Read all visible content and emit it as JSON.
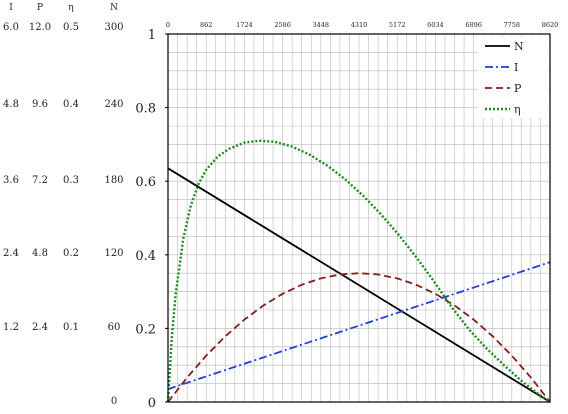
{
  "chart_data": {
    "type": "line",
    "title": "",
    "xlabel": "",
    "ylabel": "",
    "top_axis_ticks": [
      "0",
      "862",
      "1724",
      "2586",
      "3448",
      "4310",
      "5172",
      "6034",
      "6896",
      "7758",
      "8620"
    ],
    "xlim": [
      0,
      8620
    ],
    "ylim": [
      0,
      1
    ],
    "left_axis_ticks": [
      "0",
      "0.2",
      "0.4",
      "0.6",
      "0.8",
      "1"
    ],
    "grid": true,
    "grid_minor_x_per_major": 4,
    "grid_minor_y_per_major": 4,
    "secondary_scales": {
      "headers": [
        "I",
        "P",
        "η",
        "N"
      ],
      "rows": [
        [
          "6.0",
          "12.0",
          "0.5",
          "300"
        ],
        [
          "4.8",
          "9.6",
          "0.4",
          "240"
        ],
        [
          "3.6",
          "7.2",
          "0.3",
          "180"
        ],
        [
          "2.4",
          "4.8",
          "0.2",
          "120"
        ],
        [
          "1.2",
          "2.4",
          "0.1",
          "60"
        ],
        [
          "",
          "",
          "",
          "0"
        ]
      ]
    },
    "legend_position": "top-right",
    "series": [
      {
        "name": "N",
        "color": "#000000",
        "dash": "solid",
        "x": [
          0,
          862,
          1724,
          2586,
          3448,
          4310,
          5172,
          6034,
          6896,
          7758,
          8620
        ],
        "y": [
          0.635,
          0.5715,
          0.508,
          0.4445,
          0.381,
          0.3175,
          0.254,
          0.1905,
          0.127,
          0.0635,
          0.0
        ]
      },
      {
        "name": "I",
        "color": "#1f3fd6",
        "dash": "dashdot",
        "x": [
          0,
          862,
          1724,
          2586,
          3448,
          4310,
          5172,
          6034,
          6896,
          7758,
          8620
        ],
        "y": [
          0.035,
          0.0695,
          0.104,
          0.1385,
          0.173,
          0.2075,
          0.242,
          0.2765,
          0.311,
          0.3455,
          0.38
        ]
      },
      {
        "name": "P",
        "color": "#8b1a1a",
        "dash": "dashed",
        "x": [
          0,
          431,
          862,
          1293,
          1724,
          2155,
          2586,
          3017,
          3448,
          3879,
          4310,
          4741,
          5172,
          5603,
          6034,
          6465,
          6896,
          7327,
          7758,
          8189,
          8620
        ],
        "y": [
          0.0,
          0.0665,
          0.126,
          0.1785,
          0.224,
          0.2625,
          0.294,
          0.3185,
          0.336,
          0.3465,
          0.35,
          0.3465,
          0.336,
          0.3185,
          0.294,
          0.2625,
          0.224,
          0.1785,
          0.126,
          0.0665,
          0.0
        ]
      },
      {
        "name": "η",
        "color": "#1a8a1a",
        "dash": "dotted",
        "x": [
          0,
          86,
          172,
          345,
          517,
          690,
          862,
          1121,
          1379,
          1724,
          2069,
          2414,
          2800,
          3200,
          3600,
          4000,
          4400,
          4800,
          5200,
          5600,
          6000,
          6400,
          6800,
          7200,
          7600,
          8000,
          8300,
          8500,
          8620
        ],
        "y": [
          0.0,
          0.175,
          0.292,
          0.444,
          0.535,
          0.593,
          0.631,
          0.667,
          0.688,
          0.705,
          0.71,
          0.707,
          0.694,
          0.672,
          0.642,
          0.605,
          0.561,
          0.511,
          0.455,
          0.394,
          0.328,
          0.258,
          0.196,
          0.144,
          0.098,
          0.055,
          0.027,
          0.01,
          0.0
        ]
      }
    ]
  }
}
